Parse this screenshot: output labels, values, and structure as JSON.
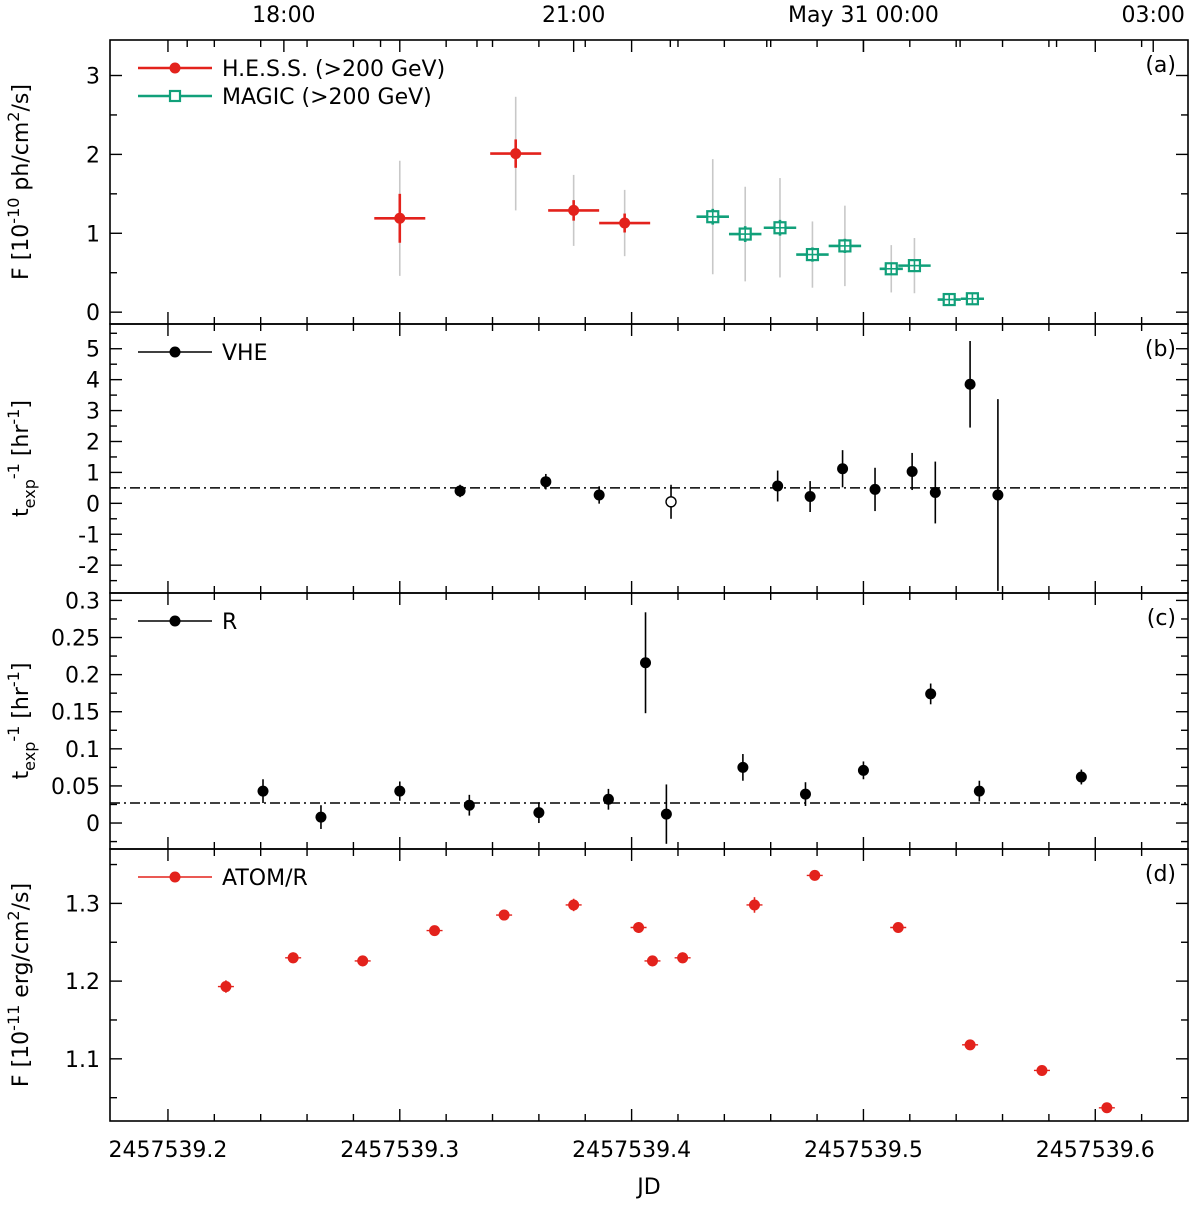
{
  "chart_data": {
    "type": "scatter",
    "x_axis": {
      "label": "JD",
      "range": [
        2457539.175,
        2457539.64
      ],
      "ticks": [
        2457539.2,
        2457539.3,
        2457539.4,
        2457539.5,
        2457539.6
      ],
      "tick_labels": [
        "2457539.2",
        "2457539.3",
        "2457539.4",
        "2457539.5",
        "2457539.6"
      ]
    },
    "top_axis": {
      "major_ticks": [
        {
          "jd": 2457539.25,
          "label": "18:00"
        },
        {
          "jd": 2457539.375,
          "label": "21:00"
        },
        {
          "jd": 2457539.5,
          "label": "May 31 00:00"
        },
        {
          "jd": 2457539.625,
          "label": "03:00"
        }
      ],
      "minor_ticks": [
        2457539.2083,
        2457539.2917,
        2457539.3333,
        2457539.4167,
        2457539.4583,
        2457539.5417,
        2457539.5833
      ]
    },
    "panels": [
      {
        "id": "(a)",
        "ylabel_main": "F [10",
        "ylabel_exp": "-10",
        "ylabel_rest": " ph/cm",
        "ylabel_exp2": "2",
        "ylabel_end": "/s]",
        "ylim": [
          -0.15,
          3.45
        ],
        "yticks": [
          0,
          1,
          2,
          3
        ],
        "ytick_labels": [
          "0",
          "1",
          "2",
          "3"
        ],
        "series": [
          {
            "name": "H.E.S.S. (>200 GeV)",
            "color": "#e3221c",
            "marker": "filled-circle",
            "points": [
              {
                "x": 2457539.3,
                "xerr": 0.011,
                "y": 1.19,
                "yerr": 0.31,
                "syserr": 0.73
              },
              {
                "x": 2457539.35,
                "xerr": 0.011,
                "y": 2.01,
                "yerr": 0.18,
                "syserr": 0.72
              },
              {
                "x": 2457539.375,
                "xerr": 0.011,
                "y": 1.29,
                "yerr": 0.13,
                "syserr": 0.45
              },
              {
                "x": 2457539.397,
                "xerr": 0.011,
                "y": 1.13,
                "yerr": 0.12,
                "syserr": 0.42
              }
            ]
          },
          {
            "name": "MAGIC (>200 GeV)",
            "color": "#11a07a",
            "marker": "open-square",
            "points": [
              {
                "x": 2457539.435,
                "xerr": 0.007,
                "y": 1.21,
                "yerr": 0.1,
                "syserr": 0.73
              },
              {
                "x": 2457539.449,
                "xerr": 0.007,
                "y": 0.99,
                "yerr": 0.1,
                "syserr": 0.6
              },
              {
                "x": 2457539.464,
                "xerr": 0.007,
                "y": 1.07,
                "yerr": 0.1,
                "syserr": 0.63
              },
              {
                "x": 2457539.478,
                "xerr": 0.007,
                "y": 0.73,
                "yerr": 0.09,
                "syserr": 0.42
              },
              {
                "x": 2457539.492,
                "xerr": 0.007,
                "y": 0.84,
                "yerr": 0.09,
                "syserr": 0.51
              },
              {
                "x": 2457539.512,
                "xerr": 0.005,
                "y": 0.55,
                "yerr": 0.08,
                "syserr": 0.3
              },
              {
                "x": 2457539.522,
                "xerr": 0.007,
                "y": 0.59,
                "yerr": 0.07,
                "syserr": 0.35
              },
              {
                "x": 2457539.537,
                "xerr": 0.005,
                "y": 0.16,
                "yerr": 0.05,
                "syserr": 0.05
              },
              {
                "x": 2457539.547,
                "xerr": 0.005,
                "y": 0.17,
                "yerr": 0.07,
                "syserr": 0.07
              }
            ]
          }
        ]
      },
      {
        "id": "(b)",
        "ylabel_main": "t",
        "ylabel_sub": "exp",
        "ylabel_exp": "-1",
        "ylabel_rest": " [hr",
        "ylabel_exp2": "-1",
        "ylabel_end": "]",
        "ylim": [
          -2.9,
          5.8
        ],
        "yticks": [
          -2,
          -1,
          0,
          1,
          2,
          3,
          4,
          5
        ],
        "ytick_labels": [
          "-2",
          "-1",
          "0",
          "1",
          "2",
          "3",
          "4",
          "5"
        ],
        "ref_line": 0.5,
        "series": [
          {
            "name": "VHE",
            "color": "#000000",
            "marker": "filled-circle",
            "points": [
              {
                "x": 2457539.326,
                "y": 0.4,
                "yerr": 0.2
              },
              {
                "x": 2457539.363,
                "y": 0.7,
                "yerr": 0.25
              },
              {
                "x": 2457539.386,
                "y": 0.27,
                "yerr": 0.28
              },
              {
                "x": 2457539.463,
                "y": 0.56,
                "yerr": 0.5
              },
              {
                "x": 2457539.477,
                "y": 0.22,
                "yerr": 0.5
              },
              {
                "x": 2457539.491,
                "y": 1.12,
                "yerr": 0.6
              },
              {
                "x": 2457539.505,
                "y": 0.45,
                "yerr": 0.7
              },
              {
                "x": 2457539.521,
                "y": 1.03,
                "yerr": 0.6
              },
              {
                "x": 2457539.531,
                "y": 0.35,
                "yerr": 1.0
              },
              {
                "x": 2457539.546,
                "y": 3.85,
                "yerr": 1.4
              },
              {
                "x": 2457539.558,
                "y": 0.27,
                "yerr": 3.1
              }
            ],
            "open_points": [
              {
                "x": 2457539.417,
                "y": 0.05,
                "yerr": 0.55
              }
            ]
          }
        ]
      },
      {
        "id": "(c)",
        "ylabel_main": "t",
        "ylabel_sub": "exp",
        "ylabel_exp": "-1",
        "ylabel_rest": " [hr",
        "ylabel_exp2": "-1",
        "ylabel_end": "]",
        "ylim": [
          -0.035,
          0.31
        ],
        "yticks": [
          0,
          0.05,
          0.1,
          0.15,
          0.2,
          0.25,
          0.3
        ],
        "ytick_labels": [
          "0",
          "0.05",
          "0.1",
          "0.15",
          "0.2",
          "0.25",
          "0.3"
        ],
        "ref_line": 0.027,
        "series": [
          {
            "name": "R",
            "color": "#000000",
            "marker": "filled-circle",
            "points": [
              {
                "x": 2457539.241,
                "y": 0.043,
                "yerr": 0.016
              },
              {
                "x": 2457539.266,
                "y": 0.008,
                "yerr": 0.016
              },
              {
                "x": 2457539.3,
                "y": 0.043,
                "yerr": 0.013
              },
              {
                "x": 2457539.33,
                "y": 0.024,
                "yerr": 0.014
              },
              {
                "x": 2457539.36,
                "y": 0.014,
                "yerr": 0.014
              },
              {
                "x": 2457539.39,
                "y": 0.032,
                "yerr": 0.014
              },
              {
                "x": 2457539.406,
                "y": 0.216,
                "yerr": 0.068
              },
              {
                "x": 2457539.415,
                "y": 0.012,
                "yerr": 0.04
              },
              {
                "x": 2457539.448,
                "y": 0.075,
                "yerr": 0.018
              },
              {
                "x": 2457539.475,
                "y": 0.039,
                "yerr": 0.016
              },
              {
                "x": 2457539.5,
                "y": 0.071,
                "yerr": 0.012
              },
              {
                "x": 2457539.529,
                "y": 0.174,
                "yerr": 0.014
              },
              {
                "x": 2457539.55,
                "y": 0.043,
                "yerr": 0.014
              },
              {
                "x": 2457539.594,
                "y": 0.062,
                "yerr": 0.01
              }
            ]
          }
        ]
      },
      {
        "id": "(d)",
        "ylabel_main": "F [10",
        "ylabel_exp": "-11",
        "ylabel_rest": " erg/cm",
        "ylabel_exp2": "2",
        "ylabel_end": "/s]",
        "ylim": [
          1.02,
          1.37
        ],
        "yticks": [
          1.1,
          1.2,
          1.3
        ],
        "ytick_labels": [
          "1.1",
          "1.2",
          "1.3"
        ],
        "series": [
          {
            "name": "ATOM/R",
            "color": "#e3221c",
            "marker": "filled-circle",
            "points": [
              {
                "x": 2457539.225,
                "y": 1.193,
                "yerr": 0.008
              },
              {
                "x": 2457539.254,
                "y": 1.23,
                "yerr": 0.007
              },
              {
                "x": 2457539.284,
                "y": 1.226,
                "yerr": 0.007
              },
              {
                "x": 2457539.315,
                "y": 1.265,
                "yerr": 0.006
              },
              {
                "x": 2457539.345,
                "y": 1.285,
                "yerr": 0.006
              },
              {
                "x": 2457539.375,
                "y": 1.298,
                "yerr": 0.008
              },
              {
                "x": 2457539.403,
                "y": 1.269,
                "yerr": 0.007
              },
              {
                "x": 2457539.409,
                "y": 1.226,
                "yerr": 0.007
              },
              {
                "x": 2457539.422,
                "y": 1.23,
                "yerr": 0.007
              },
              {
                "x": 2457539.453,
                "y": 1.298,
                "yerr": 0.01
              },
              {
                "x": 2457539.479,
                "y": 1.336,
                "yerr": 0.006
              },
              {
                "x": 2457539.515,
                "y": 1.269,
                "yerr": 0.006
              },
              {
                "x": 2457539.546,
                "y": 1.118,
                "yerr": 0.006
              },
              {
                "x": 2457539.577,
                "y": 1.085,
                "yerr": 0.005
              },
              {
                "x": 2457539.605,
                "y": 1.037,
                "yerr": 0.004
              }
            ]
          }
        ]
      }
    ]
  },
  "colors": {
    "hess": "#e3221c",
    "magic": "#11a07a",
    "black": "#000000",
    "syserr": "#c8c8c8"
  }
}
